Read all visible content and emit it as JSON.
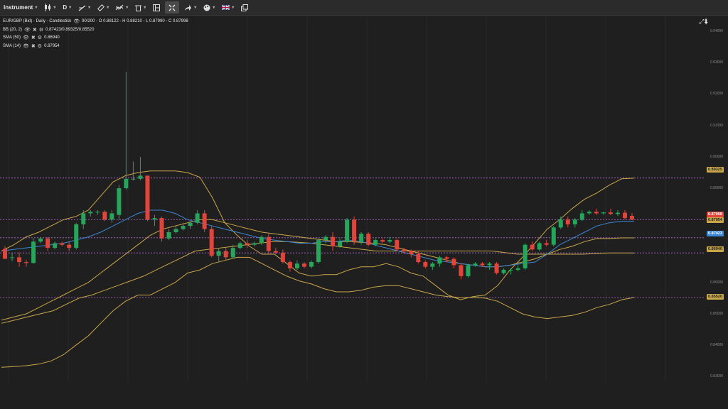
{
  "toolbar": {
    "instrument_label": "Instrument",
    "timeframe_label": "D",
    "icons": [
      "candle-type-icon",
      "draw-line-icon",
      "measure-icon",
      "indicator-icon",
      "trash-icon",
      "layout-icon",
      "fullscreen-icon",
      "share-icon",
      "theme-icon",
      "flag-uk-icon",
      "popout-icon"
    ]
  },
  "legend": {
    "main": "EUR/GBP (Bid) - Daily - Candlestick",
    "ohlc": "90/200 - O 0.88122 - H 0.88210 - L 0.87990 - C 0.87998",
    "bb_name": "BB (20, 2)",
    "bb_values": "0.87423/0.89325/0.85520",
    "sma50_name": "SMA (50)",
    "sma50_value": "0.86940",
    "sma14_name": "SMA (14)",
    "sma14_value": "0.87954"
  },
  "price_tags": {
    "bb_upper": "0.89325",
    "close": "0.87998",
    "sma14": "0.87954",
    "bb_mid": "0.87423",
    "sma50": "0.86940",
    "bb_lower": "0.85520"
  },
  "colors": {
    "up": "#26a65b",
    "down": "#e0443a",
    "bb": "#c9a64a",
    "sma50": "#c9a64a",
    "sma14": "#3a86d6",
    "level_line": "#b46ad8",
    "bg": "#1f1f1f"
  },
  "chart_data": {
    "type": "candlestick",
    "instrument": "EUR/GBP (Bid)",
    "timeframe": "Daily",
    "y_ticks": [
      "0.83000",
      "0.84000",
      "0.85000",
      "0.86000",
      "0.87000",
      "0.88000",
      "0.89000",
      "0.90000",
      "0.91000",
      "0.92000",
      "0.93000",
      "0.94000"
    ],
    "ylim": [
      0.8283,
      0.9445
    ],
    "levels": [
      0.89325,
      0.87998,
      0.87423,
      0.8694,
      0.8552
    ],
    "candles": [
      {
        "o": 0.8707,
        "h": 0.8715,
        "l": 0.8678,
        "c": 0.8675
      },
      {
        "o": 0.868,
        "h": 0.8693,
        "l": 0.8667,
        "c": 0.868
      },
      {
        "o": 0.868,
        "h": 0.8695,
        "l": 0.865,
        "c": 0.8665
      },
      {
        "o": 0.8665,
        "h": 0.8672,
        "l": 0.865,
        "c": 0.8662
      },
      {
        "o": 0.8662,
        "h": 0.874,
        "l": 0.866,
        "c": 0.873
      },
      {
        "o": 0.873,
        "h": 0.8745,
        "l": 0.8725,
        "c": 0.874
      },
      {
        "o": 0.874,
        "h": 0.8745,
        "l": 0.87,
        "c": 0.871
      },
      {
        "o": 0.871,
        "h": 0.873,
        "l": 0.8705,
        "c": 0.8725
      },
      {
        "o": 0.8725,
        "h": 0.873,
        "l": 0.8715,
        "c": 0.872
      },
      {
        "o": 0.872,
        "h": 0.873,
        "l": 0.87,
        "c": 0.871
      },
      {
        "o": 0.871,
        "h": 0.879,
        "l": 0.8705,
        "c": 0.8785
      },
      {
        "o": 0.8785,
        "h": 0.883,
        "l": 0.877,
        "c": 0.882
      },
      {
        "o": 0.882,
        "h": 0.883,
        "l": 0.881,
        "c": 0.8825
      },
      {
        "o": 0.8825,
        "h": 0.883,
        "l": 0.8815,
        "c": 0.8825
      },
      {
        "o": 0.8825,
        "h": 0.883,
        "l": 0.8795,
        "c": 0.88
      },
      {
        "o": 0.88,
        "h": 0.883,
        "l": 0.879,
        "c": 0.882
      },
      {
        "o": 0.8815,
        "h": 0.891,
        "l": 0.88,
        "c": 0.89
      },
      {
        "o": 0.89,
        "h": 0.927,
        "l": 0.8895,
        "c": 0.893
      },
      {
        "o": 0.893,
        "h": 0.8985,
        "l": 0.8925,
        "c": 0.893
      },
      {
        "o": 0.893,
        "h": 0.9,
        "l": 0.8925,
        "c": 0.894
      },
      {
        "o": 0.894,
        "h": 0.894,
        "l": 0.8795,
        "c": 0.88
      },
      {
        "o": 0.88,
        "h": 0.8815,
        "l": 0.878,
        "c": 0.8805
      },
      {
        "o": 0.8805,
        "h": 0.881,
        "l": 0.873,
        "c": 0.874
      },
      {
        "o": 0.874,
        "h": 0.877,
        "l": 0.8735,
        "c": 0.876
      },
      {
        "o": 0.876,
        "h": 0.878,
        "l": 0.8755,
        "c": 0.877
      },
      {
        "o": 0.877,
        "h": 0.879,
        "l": 0.8765,
        "c": 0.878
      },
      {
        "o": 0.878,
        "h": 0.8795,
        "l": 0.877,
        "c": 0.879
      },
      {
        "o": 0.879,
        "h": 0.883,
        "l": 0.8785,
        "c": 0.882
      },
      {
        "o": 0.882,
        "h": 0.883,
        "l": 0.876,
        "c": 0.877
      },
      {
        "o": 0.877,
        "h": 0.878,
        "l": 0.868,
        "c": 0.8685
      },
      {
        "o": 0.8685,
        "h": 0.871,
        "l": 0.8665,
        "c": 0.87
      },
      {
        "o": 0.87,
        "h": 0.871,
        "l": 0.867,
        "c": 0.868
      },
      {
        "o": 0.868,
        "h": 0.872,
        "l": 0.8675,
        "c": 0.871
      },
      {
        "o": 0.871,
        "h": 0.873,
        "l": 0.8705,
        "c": 0.8725
      },
      {
        "o": 0.8725,
        "h": 0.8735,
        "l": 0.871,
        "c": 0.872
      },
      {
        "o": 0.872,
        "h": 0.873,
        "l": 0.8715,
        "c": 0.8725
      },
      {
        "o": 0.8725,
        "h": 0.875,
        "l": 0.872,
        "c": 0.8745
      },
      {
        "o": 0.8745,
        "h": 0.8755,
        "l": 0.869,
        "c": 0.87
      },
      {
        "o": 0.87,
        "h": 0.871,
        "l": 0.869,
        "c": 0.8695
      },
      {
        "o": 0.8695,
        "h": 0.8705,
        "l": 0.866,
        "c": 0.8665
      },
      {
        "o": 0.8665,
        "h": 0.867,
        "l": 0.8635,
        "c": 0.8645
      },
      {
        "o": 0.8645,
        "h": 0.867,
        "l": 0.864,
        "c": 0.866
      },
      {
        "o": 0.866,
        "h": 0.8665,
        "l": 0.8645,
        "c": 0.865
      },
      {
        "o": 0.865,
        "h": 0.867,
        "l": 0.8645,
        "c": 0.8665
      },
      {
        "o": 0.8665,
        "h": 0.874,
        "l": 0.866,
        "c": 0.8735
      },
      {
        "o": 0.8735,
        "h": 0.875,
        "l": 0.8725,
        "c": 0.8745
      },
      {
        "o": 0.8745,
        "h": 0.876,
        "l": 0.87,
        "c": 0.8715
      },
      {
        "o": 0.8715,
        "h": 0.874,
        "l": 0.871,
        "c": 0.873
      },
      {
        "o": 0.873,
        "h": 0.8805,
        "l": 0.8725,
        "c": 0.88
      },
      {
        "o": 0.88,
        "h": 0.881,
        "l": 0.872,
        "c": 0.873
      },
      {
        "o": 0.873,
        "h": 0.876,
        "l": 0.872,
        "c": 0.8755
      },
      {
        "o": 0.8755,
        "h": 0.876,
        "l": 0.8715,
        "c": 0.872
      },
      {
        "o": 0.872,
        "h": 0.874,
        "l": 0.8715,
        "c": 0.8735
      },
      {
        "o": 0.8735,
        "h": 0.874,
        "l": 0.8725,
        "c": 0.873
      },
      {
        "o": 0.873,
        "h": 0.8745,
        "l": 0.8725,
        "c": 0.8735
      },
      {
        "o": 0.8735,
        "h": 0.874,
        "l": 0.87,
        "c": 0.8705
      },
      {
        "o": 0.8705,
        "h": 0.871,
        "l": 0.869,
        "c": 0.87
      },
      {
        "o": 0.87,
        "h": 0.8705,
        "l": 0.868,
        "c": 0.869
      },
      {
        "o": 0.869,
        "h": 0.87,
        "l": 0.866,
        "c": 0.8665
      },
      {
        "o": 0.8665,
        "h": 0.867,
        "l": 0.8645,
        "c": 0.865
      },
      {
        "o": 0.865,
        "h": 0.8665,
        "l": 0.864,
        "c": 0.866
      },
      {
        "o": 0.866,
        "h": 0.8685,
        "l": 0.865,
        "c": 0.868
      },
      {
        "o": 0.868,
        "h": 0.8685,
        "l": 0.8665,
        "c": 0.8675
      },
      {
        "o": 0.8675,
        "h": 0.868,
        "l": 0.8645,
        "c": 0.8655
      },
      {
        "o": 0.8655,
        "h": 0.866,
        "l": 0.861,
        "c": 0.862
      },
      {
        "o": 0.862,
        "h": 0.866,
        "l": 0.8615,
        "c": 0.8655
      },
      {
        "o": 0.8655,
        "h": 0.8665,
        "l": 0.865,
        "c": 0.866
      },
      {
        "o": 0.866,
        "h": 0.8665,
        "l": 0.865,
        "c": 0.8655
      },
      {
        "o": 0.8655,
        "h": 0.8665,
        "l": 0.864,
        "c": 0.866
      },
      {
        "o": 0.866,
        "h": 0.8665,
        "l": 0.8625,
        "c": 0.863
      },
      {
        "o": 0.863,
        "h": 0.8645,
        "l": 0.8625,
        "c": 0.864
      },
      {
        "o": 0.864,
        "h": 0.8645,
        "l": 0.8625,
        "c": 0.864
      },
      {
        "o": 0.864,
        "h": 0.8655,
        "l": 0.8635,
        "c": 0.8645
      },
      {
        "o": 0.8645,
        "h": 0.8725,
        "l": 0.864,
        "c": 0.872
      },
      {
        "o": 0.872,
        "h": 0.873,
        "l": 0.87,
        "c": 0.8705
      },
      {
        "o": 0.8705,
        "h": 0.873,
        "l": 0.87,
        "c": 0.8725
      },
      {
        "o": 0.8725,
        "h": 0.8735,
        "l": 0.8715,
        "c": 0.872
      },
      {
        "o": 0.872,
        "h": 0.878,
        "l": 0.8715,
        "c": 0.8775
      },
      {
        "o": 0.8775,
        "h": 0.881,
        "l": 0.877,
        "c": 0.88
      },
      {
        "o": 0.88,
        "h": 0.881,
        "l": 0.8775,
        "c": 0.8785
      },
      {
        "o": 0.8785,
        "h": 0.8805,
        "l": 0.8775,
        "c": 0.88
      },
      {
        "o": 0.88,
        "h": 0.883,
        "l": 0.8795,
        "c": 0.882
      },
      {
        "o": 0.882,
        "h": 0.883,
        "l": 0.8815,
        "c": 0.8825
      },
      {
        "o": 0.8825,
        "h": 0.8835,
        "l": 0.8815,
        "c": 0.882
      },
      {
        "o": 0.882,
        "h": 0.8825,
        "l": 0.8815,
        "c": 0.8823
      },
      {
        "o": 0.8823,
        "h": 0.8835,
        "l": 0.8815,
        "c": 0.8818
      },
      {
        "o": 0.8818,
        "h": 0.883,
        "l": 0.8812,
        "c": 0.8822
      },
      {
        "o": 0.8822,
        "h": 0.883,
        "l": 0.88,
        "c": 0.8805
      },
      {
        "o": 0.8812,
        "h": 0.8821,
        "l": 0.8799,
        "c": 0.88
      }
    ],
    "bb_upper": [
      0.87,
      0.872,
      0.8745,
      0.876,
      0.878,
      0.88,
      0.881,
      0.883,
      0.8875,
      0.892,
      0.894,
      0.895,
      0.8955,
      0.8955,
      0.8955,
      0.895,
      0.8935,
      0.887,
      0.879,
      0.875,
      0.8715,
      0.869,
      0.869,
      0.866,
      0.863,
      0.862,
      0.8625,
      0.8625,
      0.864,
      0.865,
      0.865,
      0.866,
      0.865,
      0.863,
      0.862,
      0.859,
      0.856,
      0.8545,
      0.8555,
      0.856,
      0.859,
      0.864,
      0.868,
      0.8725,
      0.877,
      0.88,
      0.8835,
      0.8865,
      0.8885,
      0.891,
      0.893,
      0.8932
    ],
    "bb_mid": [
      0.848,
      0.849,
      0.85,
      0.852,
      0.854,
      0.856,
      0.858,
      0.86,
      0.863,
      0.866,
      0.869,
      0.872,
      0.875,
      0.877,
      0.878,
      0.879,
      0.88,
      0.88,
      0.879,
      0.878,
      0.877,
      0.876,
      0.8755,
      0.875,
      0.8745,
      0.874,
      0.8735,
      0.873,
      0.873,
      0.8728,
      0.8725,
      0.872,
      0.871,
      0.87,
      0.869,
      0.868,
      0.867,
      0.866,
      0.8655,
      0.865,
      0.865,
      0.8655,
      0.8665,
      0.8675,
      0.869,
      0.8705,
      0.8715,
      0.873,
      0.874,
      0.874,
      0.8742,
      0.8742
    ],
    "sma50": [
      0.847,
      0.848,
      0.849,
      0.85,
      0.851,
      0.853,
      0.855,
      0.856,
      0.8575,
      0.859,
      0.8605,
      0.862,
      0.864,
      0.866,
      0.868,
      0.87,
      0.8705,
      0.871,
      0.8715,
      0.872,
      0.8725,
      0.873,
      0.873,
      0.8728,
      0.8725,
      0.872,
      0.8715,
      0.871,
      0.8705,
      0.87,
      0.87,
      0.87,
      0.87,
      0.87,
      0.87,
      0.87,
      0.87,
      0.87,
      0.87,
      0.8695,
      0.869,
      0.869,
      0.869,
      0.869,
      0.869,
      0.869,
      0.8692,
      0.8694,
      0.8694,
      0.8694
    ],
    "sma14": [
      0.87,
      0.8705,
      0.871,
      0.8715,
      0.872,
      0.8725,
      0.8735,
      0.8745,
      0.876,
      0.878,
      0.88,
      0.882,
      0.883,
      0.883,
      0.882,
      0.88,
      0.879,
      0.878,
      0.877,
      0.876,
      0.875,
      0.874,
      0.8735,
      0.873,
      0.8725,
      0.8725,
      0.873,
      0.873,
      0.8735,
      0.873,
      0.872,
      0.871,
      0.87,
      0.869,
      0.868,
      0.867,
      0.8665,
      0.866,
      0.8655,
      0.865,
      0.865,
      0.8655,
      0.866,
      0.8665,
      0.869,
      0.872,
      0.874,
      0.876,
      0.878,
      0.879,
      0.8795,
      0.8795
    ],
    "bb_lower": [
      0.833,
      0.8332,
      0.8335,
      0.834,
      0.835,
      0.837,
      0.84,
      0.843,
      0.847,
      0.851,
      0.854,
      0.856,
      0.856,
      0.858,
      0.86,
      0.863,
      0.864,
      0.866,
      0.867,
      0.868,
      0.868,
      0.866,
      0.864,
      0.862,
      0.8605,
      0.8595,
      0.858,
      0.857,
      0.857,
      0.8575,
      0.8585,
      0.859,
      0.859,
      0.858,
      0.857,
      0.856,
      0.8555,
      0.8552,
      0.8552,
      0.855,
      0.854,
      0.852,
      0.85,
      0.849,
      0.8485,
      0.849,
      0.8495,
      0.8505,
      0.852,
      0.853,
      0.8545,
      0.8552
    ]
  }
}
